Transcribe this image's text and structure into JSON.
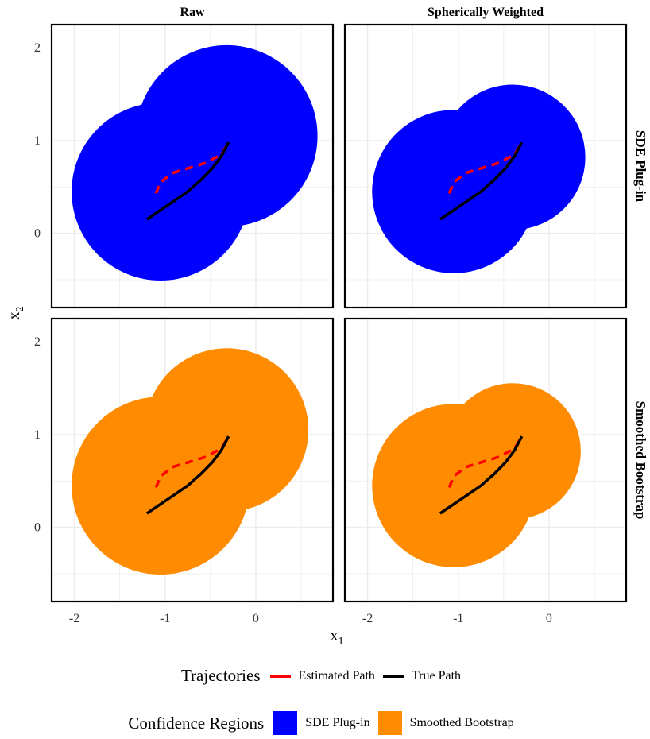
{
  "chart_data": {
    "type": "faceted-region-path",
    "columns": [
      "Raw",
      "Spherically Weighted"
    ],
    "rows": [
      "SDE Plug-in",
      "Smoothed Bootstrap"
    ],
    "xlabel_main": "x",
    "xlabel_sub": "1",
    "ylabel_main": "x",
    "ylabel_sub": "2",
    "xlim": [
      -2.25,
      0.85
    ],
    "ylim": [
      -0.8,
      2.25
    ],
    "x_ticks": [
      -2,
      -1,
      0
    ],
    "y_ticks": [
      0,
      1,
      2
    ],
    "x_tick_labels": [
      "-2",
      "-1",
      "0"
    ],
    "y_tick_labels": [
      "0",
      "1",
      "2"
    ],
    "grid": true,
    "series": [
      {
        "name": "Estimated Path",
        "style": "dashed",
        "color": "#ff0000",
        "x": [
          -1.1,
          -1.05,
          -0.92,
          -0.75,
          -0.55,
          -0.38,
          -0.3
        ],
        "y": [
          0.43,
          0.55,
          0.65,
          0.7,
          0.76,
          0.85,
          0.98
        ]
      },
      {
        "name": "True Path",
        "style": "solid",
        "color": "#000000",
        "x": [
          -1.2,
          -1.05,
          -0.9,
          -0.75,
          -0.6,
          -0.48,
          -0.38,
          -0.3
        ],
        "y": [
          0.15,
          0.25,
          0.35,
          0.45,
          0.58,
          0.7,
          0.83,
          0.98
        ]
      }
    ],
    "regions": [
      {
        "row": "SDE Plug-in",
        "column": "Raw",
        "color": "#0000ff",
        "circles": [
          {
            "cx": -1.05,
            "cy": 0.45,
            "r": 0.98
          },
          {
            "cx": -0.32,
            "cy": 1.05,
            "r": 1.0
          }
        ]
      },
      {
        "row": "SDE Plug-in",
        "column": "Spherically Weighted",
        "color": "#0000ff",
        "circles": [
          {
            "cx": -1.05,
            "cy": 0.45,
            "r": 0.9
          },
          {
            "cx": -0.4,
            "cy": 0.82,
            "r": 0.8
          }
        ]
      },
      {
        "row": "Smoothed Bootstrap",
        "column": "Raw",
        "color": "#ff8c00",
        "circles": [
          {
            "cx": -1.05,
            "cy": 0.45,
            "r": 0.98
          },
          {
            "cx": -0.32,
            "cy": 1.05,
            "r": 0.9
          }
        ]
      },
      {
        "row": "Smoothed Bootstrap",
        "column": "Spherically Weighted",
        "color": "#ff8c00",
        "circles": [
          {
            "cx": -1.05,
            "cy": 0.45,
            "r": 0.9
          },
          {
            "cx": -0.4,
            "cy": 0.82,
            "r": 0.75
          }
        ]
      }
    ]
  },
  "legend": {
    "trajectories_title": "Trajectories",
    "estimated_label": "Estimated Path",
    "true_label": "True Path",
    "regions_title": "Confidence Regions",
    "sde_label": "SDE Plug-in",
    "bootstrap_label": "Smoothed Bootstrap",
    "sde_color": "#0000ff",
    "bootstrap_color": "#ff8c00",
    "estimated_color": "#ff0000",
    "true_color": "#000000"
  }
}
